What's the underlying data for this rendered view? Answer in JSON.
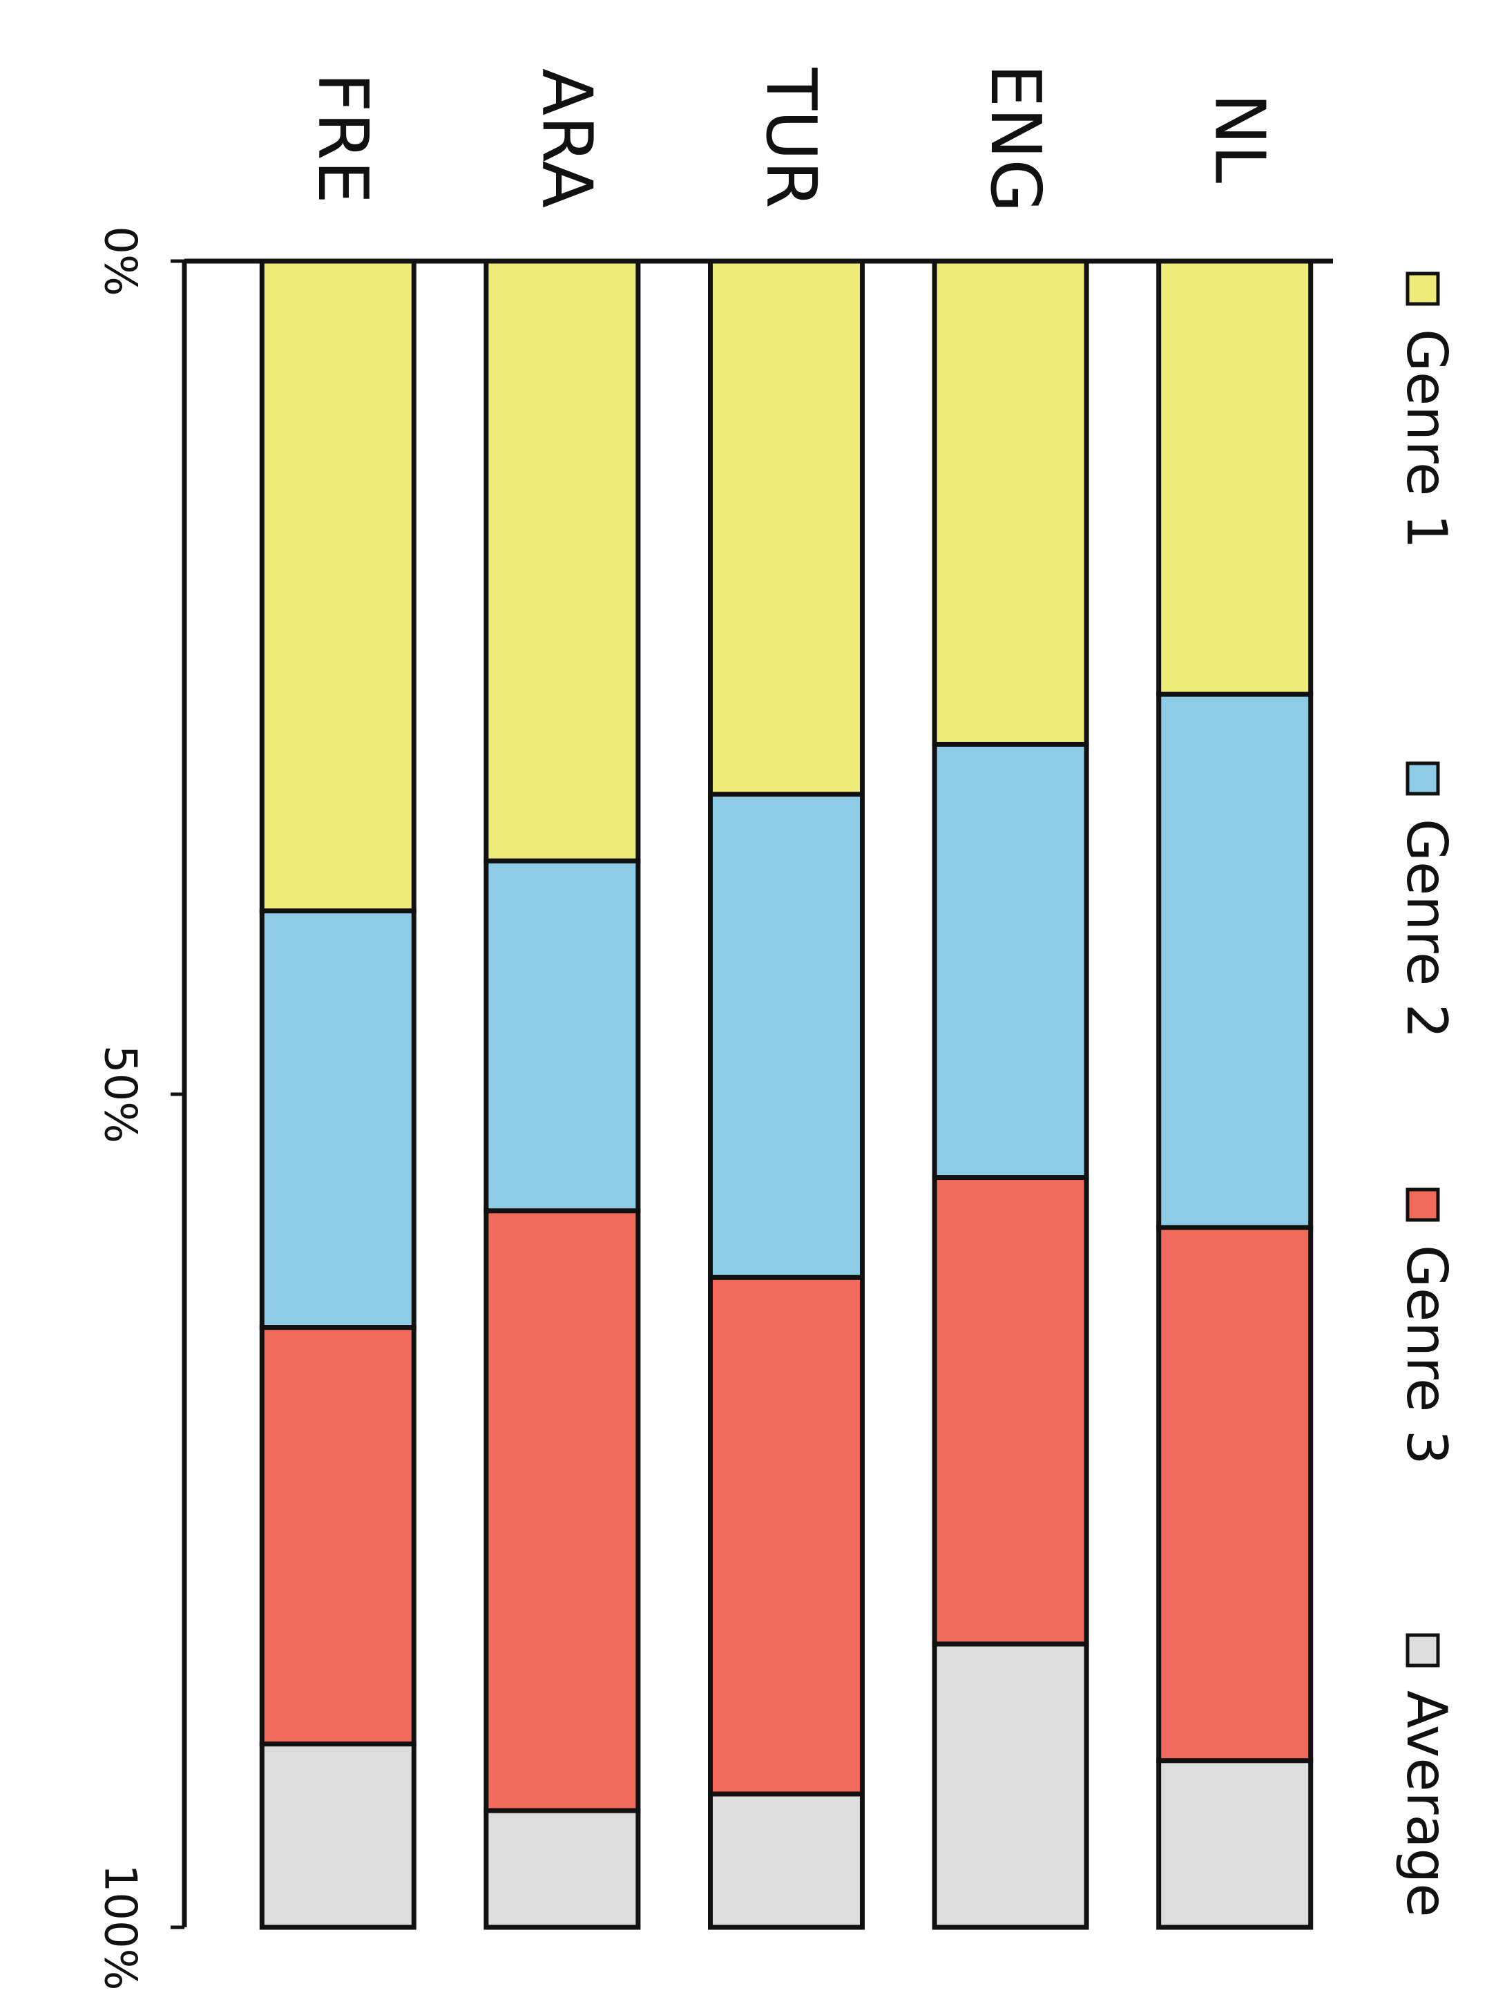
{
  "chart_data": {
    "type": "stacked_bar",
    "categories": [
      "FRE",
      "ARA",
      "TUR",
      "ENG",
      "NL"
    ],
    "series": [
      {
        "name": "Genre 1",
        "color": "#eeec78",
        "values": [
          39,
          36,
          32,
          29,
          26
        ]
      },
      {
        "name": "Genre 2",
        "color": "#8ecbe6",
        "values": [
          25,
          21,
          29,
          26,
          32
        ]
      },
      {
        "name": "Genre 3",
        "color": "#f06b5c",
        "values": [
          25,
          36,
          31,
          28,
          32
        ]
      },
      {
        "name": "Average",
        "color": "#dddddd",
        "values": [
          11,
          7,
          8,
          17,
          10
        ]
      }
    ],
    "ylim": [
      0,
      100
    ],
    "yticks": [
      {
        "value": 0,
        "label": "0%"
      },
      {
        "value": 50,
        "label": "50%"
      },
      {
        "value": 100,
        "label": "100%"
      }
    ]
  }
}
